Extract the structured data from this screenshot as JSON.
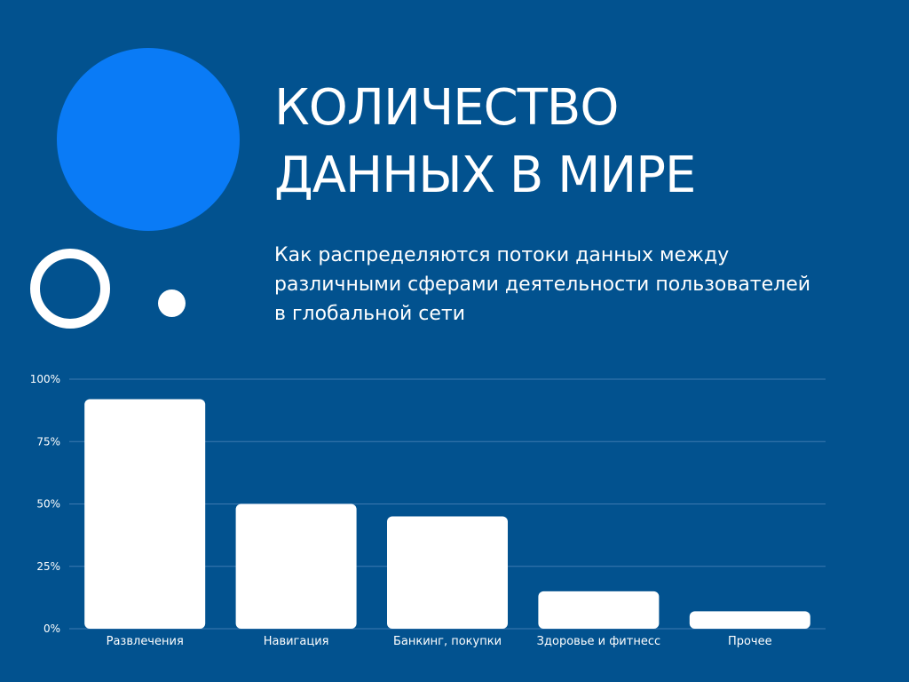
{
  "title": {
    "line1": "КОЛИЧЕСТВО",
    "line2": "ДАННЫХ В МИРЕ"
  },
  "subtitle": {
    "line1": "Как распределяются потоки данных между",
    "line2": "различными сферами деятельности пользователей",
    "line3": "в глобальной сети"
  },
  "colors": {
    "background": "#02528F",
    "accent_circle": "#0A7BF6",
    "bars": "#FFFFFF",
    "gridlines": "#3D79B0"
  },
  "decorations": [
    "filled-circle",
    "ring",
    "dot"
  ],
  "chart_data": {
    "type": "bar",
    "categories": [
      "Развлечения",
      "Навигация",
      "Банкинг, покупки",
      "Здоровье и фитнесс",
      "Прочее"
    ],
    "values": [
      92,
      50,
      45,
      15,
      7
    ],
    "yticks": [
      "0%",
      "25%",
      "50%",
      "75%",
      "100%"
    ],
    "ylim": [
      0,
      100
    ],
    "unit": "%",
    "grid": true,
    "legend": "none"
  }
}
